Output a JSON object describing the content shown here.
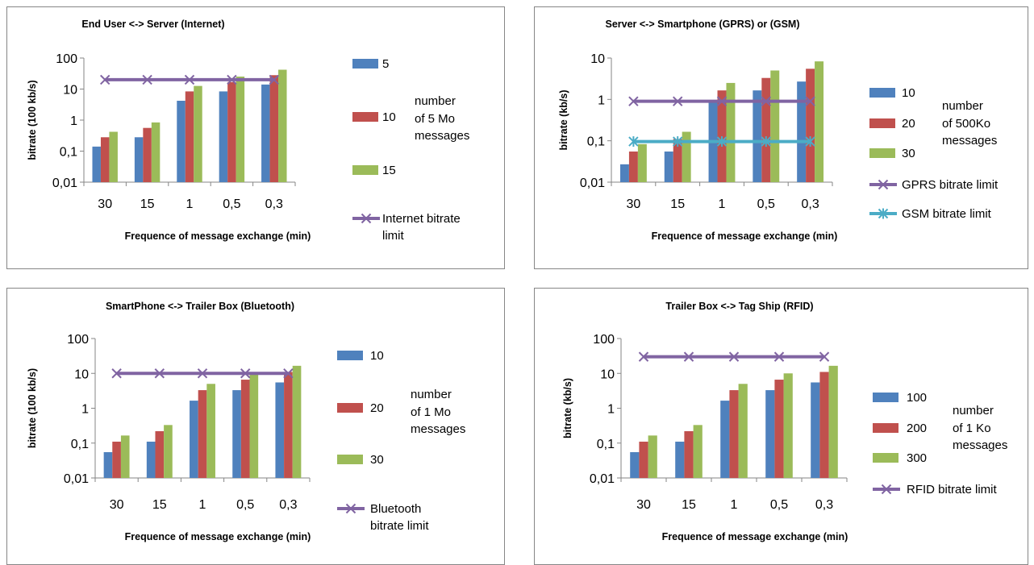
{
  "chart_data": [
    {
      "type": "bar",
      "title": "End User <-> Server (Internet)",
      "xlabel": "Frequence of message exchange (min)",
      "ylabel": "bitrate (100 kb/s)",
      "yscale": "log",
      "ylim": [
        0.01,
        100
      ],
      "yticks": [
        "0,01",
        "0,1",
        "1",
        "10",
        "100"
      ],
      "categories": [
        "30",
        "15",
        "1",
        "0,5",
        "0,3"
      ],
      "series": [
        {
          "name": "5",
          "color": "#4f81bd",
          "values": [
            0.14,
            0.28,
            4.2,
            8.4,
            14
          ]
        },
        {
          "name": "10",
          "color": "#c0504d",
          "values": [
            0.28,
            0.56,
            8.4,
            16.8,
            28
          ]
        },
        {
          "name": "15",
          "color": "#9bbb59",
          "values": [
            0.42,
            0.84,
            12.6,
            25.2,
            42
          ]
        }
      ],
      "lines": [
        {
          "name": "Internet bitrate limit",
          "color": "#8064a2",
          "marker": "x",
          "value": 20
        }
      ],
      "legend_note": [
        "number",
        "of 5 Mo",
        "messages"
      ]
    },
    {
      "type": "bar",
      "title": "Server <-> Smartphone  (GPRS) or (GSM)",
      "xlabel": "Frequence of message exchange (min)",
      "ylabel": "bitrate (kb/s)",
      "yscale": "log",
      "ylim": [
        0.01,
        10
      ],
      "yticks": [
        "0,01",
        "0,1",
        "1",
        "10"
      ],
      "categories": [
        "30",
        "15",
        "1",
        "0,5",
        "0,3"
      ],
      "series": [
        {
          "name": "10",
          "color": "#4f81bd",
          "values": [
            0.027,
            0.055,
            0.83,
            1.65,
            2.7
          ]
        },
        {
          "name": "20",
          "color": "#c0504d",
          "values": [
            0.055,
            0.11,
            1.65,
            3.3,
            5.5
          ]
        },
        {
          "name": "30",
          "color": "#9bbb59",
          "values": [
            0.083,
            0.165,
            2.5,
            5.0,
            8.3
          ]
        }
      ],
      "lines": [
        {
          "name": "GPRS bitrate limit",
          "color": "#8064a2",
          "marker": "x",
          "value": 0.9
        },
        {
          "name": "GSM bitrate  limit",
          "color": "#4bacc6",
          "marker": "asterisk",
          "value": 0.096
        }
      ],
      "legend_note": [
        "number",
        "of 500Ko",
        "messages"
      ]
    },
    {
      "type": "bar",
      "title": "SmartPhone <-> Trailer Box (Bluetooth)",
      "xlabel": "Frequence of message exchange (min)",
      "ylabel": "bitrate (100 kb/s)",
      "yscale": "log",
      "ylim": [
        0.01,
        100
      ],
      "yticks": [
        "0,01",
        "0,1",
        "1",
        "10",
        "100"
      ],
      "categories": [
        "30",
        "15",
        "1",
        "0,5",
        "0,3"
      ],
      "series": [
        {
          "name": "10",
          "color": "#4f81bd",
          "values": [
            0.055,
            0.11,
            1.65,
            3.3,
            5.5
          ]
        },
        {
          "name": "20",
          "color": "#c0504d",
          "values": [
            0.11,
            0.22,
            3.3,
            6.6,
            11
          ]
        },
        {
          "name": "30",
          "color": "#9bbb59",
          "values": [
            0.165,
            0.33,
            5.0,
            10,
            16.5
          ]
        }
      ],
      "lines": [
        {
          "name": "Bluetooth bitrate limit",
          "color": "#8064a2",
          "marker": "x",
          "value": 10
        }
      ],
      "legend_note": [
        "number",
        "of 1 Mo",
        "messages"
      ]
    },
    {
      "type": "bar",
      "title": "Trailer Box <->  Tag Ship (RFID)",
      "xlabel": "Frequence of message exchange (min)",
      "ylabel": "bitrate (kb/s)",
      "yscale": "log",
      "ylim": [
        0.01,
        100
      ],
      "yticks": [
        "0,01",
        "0,1",
        "1",
        "10",
        "100"
      ],
      "categories": [
        "30",
        "15",
        "1",
        "0,5",
        "0,3"
      ],
      "series": [
        {
          "name": "100",
          "color": "#4f81bd",
          "values": [
            0.055,
            0.11,
            1.65,
            3.3,
            5.5
          ]
        },
        {
          "name": "200",
          "color": "#c0504d",
          "values": [
            0.11,
            0.22,
            3.3,
            6.6,
            11
          ]
        },
        {
          "name": "300",
          "color": "#9bbb59",
          "values": [
            0.165,
            0.33,
            5.0,
            10,
            16.5
          ]
        }
      ],
      "lines": [
        {
          "name": "RFID bitrate  limit",
          "color": "#8064a2",
          "marker": "x",
          "value": 30
        }
      ],
      "legend_note": [
        "number",
        "of 1 Ko",
        "messages"
      ]
    }
  ]
}
